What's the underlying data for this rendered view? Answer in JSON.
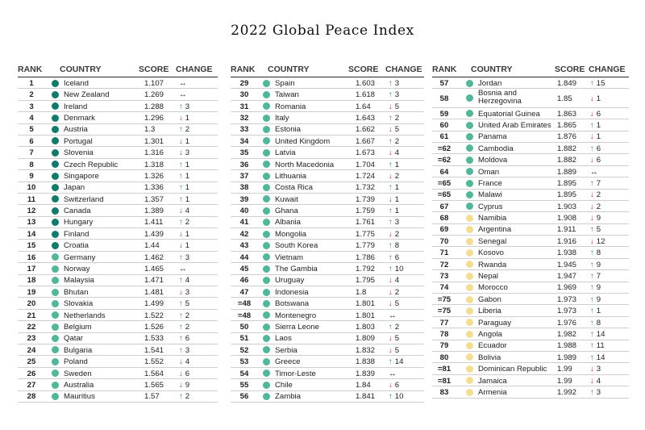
{
  "title": "2022 Global Peace Index",
  "headers": {
    "rank": "RANK",
    "country": "COUNTRY",
    "score": "SCORE",
    "change": "CHANGE"
  },
  "colors": {
    "very_high": "#0f7c6b",
    "high": "#4fb79a",
    "medium": "#f3dd90",
    "up_arrow": "#1e8a6e",
    "down_arrow": "#d22b2b"
  },
  "columns": [
    [
      {
        "rank": "1",
        "country": "Iceland",
        "score": "1.107",
        "dir": "eq",
        "change": "",
        "level": "very_high"
      },
      {
        "rank": "2",
        "country": "New Zealand",
        "score": "1.269",
        "dir": "eq",
        "change": "",
        "level": "very_high"
      },
      {
        "rank": "3",
        "country": "Ireland",
        "score": "1.288",
        "dir": "up",
        "change": "3",
        "level": "very_high"
      },
      {
        "rank": "4",
        "country": "Denmark",
        "score": "1.296",
        "dir": "down",
        "change": "1",
        "level": "very_high"
      },
      {
        "rank": "5",
        "country": "Austria",
        "score": "1.3",
        "dir": "up",
        "change": "2",
        "level": "very_high"
      },
      {
        "rank": "6",
        "country": "Portugal",
        "score": "1.301",
        "dir": "down",
        "change": "1",
        "level": "very_high"
      },
      {
        "rank": "7",
        "country": "Slovenia",
        "score": "1.316",
        "dir": "down",
        "change": "3",
        "level": "very_high"
      },
      {
        "rank": "8",
        "country": "Czech Republic",
        "score": "1.318",
        "dir": "up",
        "change": "1",
        "level": "very_high"
      },
      {
        "rank": "9",
        "country": "Singapore",
        "score": "1.326",
        "dir": "up",
        "change": "1",
        "level": "very_high"
      },
      {
        "rank": "10",
        "country": "Japan",
        "score": "1.336",
        "dir": "up",
        "change": "1",
        "level": "very_high"
      },
      {
        "rank": "11",
        "country": "Switzerland",
        "score": "1.357",
        "dir": "up",
        "change": "1",
        "level": "very_high"
      },
      {
        "rank": "12",
        "country": "Canada",
        "score": "1.389",
        "dir": "down",
        "change": "4",
        "level": "very_high"
      },
      {
        "rank": "13",
        "country": "Hungary",
        "score": "1.411",
        "dir": "up",
        "change": "2",
        "level": "very_high"
      },
      {
        "rank": "14",
        "country": "Finland",
        "score": "1.439",
        "dir": "down",
        "change": "1",
        "level": "very_high"
      },
      {
        "rank": "15",
        "country": "Croatia",
        "score": "1.44",
        "dir": "down",
        "change": "1",
        "level": "very_high"
      },
      {
        "rank": "16",
        "country": "Germany",
        "score": "1.462",
        "dir": "up",
        "change": "3",
        "level": "high"
      },
      {
        "rank": "17",
        "country": "Norway",
        "score": "1.465",
        "dir": "eq",
        "change": "",
        "level": "high"
      },
      {
        "rank": "18",
        "country": "Malaysia",
        "score": "1.471",
        "dir": "up",
        "change": "4",
        "level": "high"
      },
      {
        "rank": "19",
        "country": "Bhutan",
        "score": "1.481",
        "dir": "down",
        "change": "3",
        "level": "high"
      },
      {
        "rank": "20",
        "country": "Slovakia",
        "score": "1.499",
        "dir": "up",
        "change": "5",
        "level": "high"
      },
      {
        "rank": "21",
        "country": "Netherlands",
        "score": "1.522",
        "dir": "up",
        "change": "2",
        "level": "high"
      },
      {
        "rank": "22",
        "country": "Belgium",
        "score": "1.526",
        "dir": "up",
        "change": "2",
        "level": "high"
      },
      {
        "rank": "23",
        "country": "Qatar",
        "score": "1.533",
        "dir": "up",
        "change": "6",
        "level": "high"
      },
      {
        "rank": "24",
        "country": "Bulgaria",
        "score": "1.541",
        "dir": "up",
        "change": "3",
        "level": "high"
      },
      {
        "rank": "25",
        "country": "Poland",
        "score": "1.552",
        "dir": "down",
        "change": "4",
        "level": "high"
      },
      {
        "rank": "26",
        "country": "Sweden",
        "score": "1.564",
        "dir": "down",
        "change": "6",
        "level": "high"
      },
      {
        "rank": "27",
        "country": "Australia",
        "score": "1.565",
        "dir": "down",
        "change": "9",
        "level": "high"
      },
      {
        "rank": "28",
        "country": "Mauritius",
        "score": "1.57",
        "dir": "up",
        "change": "2",
        "level": "high"
      }
    ],
    [
      {
        "rank": "29",
        "country": "Spain",
        "score": "1.603",
        "dir": "up",
        "change": "3",
        "level": "high"
      },
      {
        "rank": "30",
        "country": "Taiwan",
        "score": "1.618",
        "dir": "up",
        "change": "3",
        "level": "high"
      },
      {
        "rank": "31",
        "country": "Romania",
        "score": "1.64",
        "dir": "down",
        "change": "5",
        "level": "high"
      },
      {
        "rank": "32",
        "country": "Italy",
        "score": "1.643",
        "dir": "up",
        "change": "2",
        "level": "high"
      },
      {
        "rank": "33",
        "country": "Estonia",
        "score": "1.662",
        "dir": "down",
        "change": "5",
        "level": "high"
      },
      {
        "rank": "34",
        "country": "United Kingdom",
        "score": "1.667",
        "dir": "up",
        "change": "2",
        "level": "high"
      },
      {
        "rank": "35",
        "country": "Latvia",
        "score": "1.673",
        "dir": "down",
        "change": "4",
        "level": "high"
      },
      {
        "rank": "36",
        "country": "North Macedonia",
        "score": "1.704",
        "dir": "up",
        "change": "1",
        "level": "high"
      },
      {
        "rank": "37",
        "country": "Lithuania",
        "score": "1.724",
        "dir": "down",
        "change": "2",
        "level": "high"
      },
      {
        "rank": "38",
        "country": "Costa Rica",
        "score": "1.732",
        "dir": "up",
        "change": "1",
        "level": "high"
      },
      {
        "rank": "39",
        "country": "Kuwait",
        "score": "1.739",
        "dir": "down",
        "change": "1",
        "level": "high"
      },
      {
        "rank": "40",
        "country": "Ghana",
        "score": "1.759",
        "dir": "up",
        "change": "1",
        "level": "high"
      },
      {
        "rank": "41",
        "country": "Albania",
        "score": "1.761",
        "dir": "up",
        "change": "3",
        "level": "high"
      },
      {
        "rank": "42",
        "country": "Mongolia",
        "score": "1.775",
        "dir": "down",
        "change": "2",
        "level": "high"
      },
      {
        "rank": "43",
        "country": "South Korea",
        "score": "1.779",
        "dir": "up",
        "change": "8",
        "level": "high"
      },
      {
        "rank": "44",
        "country": "Vietnam",
        "score": "1.786",
        "dir": "up",
        "change": "6",
        "level": "high"
      },
      {
        "rank": "45",
        "country": "The Gambia",
        "score": "1.792",
        "dir": "up",
        "change": "10",
        "level": "high"
      },
      {
        "rank": "46",
        "country": "Uruguay",
        "score": "1.795",
        "dir": "down",
        "change": "4",
        "level": "high"
      },
      {
        "rank": "47",
        "country": "Indonesia",
        "score": "1.8",
        "dir": "down",
        "change": "2",
        "level": "high"
      },
      {
        "rank": "=48",
        "country": "Botswana",
        "score": "1.801",
        "dir": "down",
        "change": "5",
        "level": "high"
      },
      {
        "rank": "=48",
        "country": "Montenegro",
        "score": "1.801",
        "dir": "eq",
        "change": "",
        "level": "high"
      },
      {
        "rank": "50",
        "country": "Sierra Leone",
        "score": "1.803",
        "dir": "up",
        "change": "2",
        "level": "high"
      },
      {
        "rank": "51",
        "country": "Laos",
        "score": "1.809",
        "dir": "down",
        "change": "5",
        "level": "high"
      },
      {
        "rank": "52",
        "country": "Serbia",
        "score": "1.832",
        "dir": "down",
        "change": "5",
        "level": "high"
      },
      {
        "rank": "53",
        "country": "Greece",
        "score": "1.838",
        "dir": "up",
        "change": "14",
        "level": "high"
      },
      {
        "rank": "54",
        "country": "Timor-Leste",
        "score": "1.839",
        "dir": "eq",
        "change": "",
        "level": "high"
      },
      {
        "rank": "55",
        "country": "Chile",
        "score": "1.84",
        "dir": "down",
        "change": "6",
        "level": "high"
      },
      {
        "rank": "56",
        "country": "Zambia",
        "score": "1.841",
        "dir": "up",
        "change": "10",
        "level": "high"
      }
    ],
    [
      {
        "rank": "57",
        "country": "Jordan",
        "score": "1.849",
        "dir": "up",
        "change": "15",
        "level": "high"
      },
      {
        "rank": "58",
        "country": "Bosnia and Herzegovina",
        "score": "1.85",
        "dir": "down",
        "change": "1",
        "level": "high",
        "tall": true
      },
      {
        "rank": "59",
        "country": "Equatorial Guinea",
        "score": "1.863",
        "dir": "down",
        "change": "6",
        "level": "high"
      },
      {
        "rank": "60",
        "country": "United Arab Emirates",
        "score": "1.865",
        "dir": "up",
        "change": "1",
        "level": "high"
      },
      {
        "rank": "61",
        "country": "Panama",
        "score": "1.876",
        "dir": "down",
        "change": "1",
        "level": "high"
      },
      {
        "rank": "=62",
        "country": "Cambodia",
        "score": "1.882",
        "dir": "up",
        "change": "6",
        "level": "high"
      },
      {
        "rank": "=62",
        "country": "Moldova",
        "score": "1.882",
        "dir": "down",
        "change": "6",
        "level": "high"
      },
      {
        "rank": "64",
        "country": "Oman",
        "score": "1.889",
        "dir": "eq",
        "change": "",
        "level": "high"
      },
      {
        "rank": "=65",
        "country": "France",
        "score": "1.895",
        "dir": "up",
        "change": "7",
        "level": "high"
      },
      {
        "rank": "=65",
        "country": "Malawi",
        "score": "1.895",
        "dir": "down",
        "change": "2",
        "level": "high"
      },
      {
        "rank": "67",
        "country": "Cyprus",
        "score": "1.903",
        "dir": "down",
        "change": "2",
        "level": "high"
      },
      {
        "rank": "68",
        "country": "Namibia",
        "score": "1.908",
        "dir": "down",
        "change": "9",
        "level": "medium"
      },
      {
        "rank": "69",
        "country": "Argentina",
        "score": "1.911",
        "dir": "up",
        "change": "5",
        "level": "medium"
      },
      {
        "rank": "70",
        "country": "Senegal",
        "score": "1.916",
        "dir": "down",
        "change": "12",
        "level": "medium"
      },
      {
        "rank": "71",
        "country": "Kosovo",
        "score": "1.938",
        "dir": "up",
        "change": "8",
        "level": "medium"
      },
      {
        "rank": "72",
        "country": "Rwanda",
        "score": "1.945",
        "dir": "up",
        "change": "9",
        "level": "medium"
      },
      {
        "rank": "73",
        "country": "Nepal",
        "score": "1.947",
        "dir": "up",
        "change": "7",
        "level": "medium"
      },
      {
        "rank": "74",
        "country": "Morocco",
        "score": "1.969",
        "dir": "up",
        "change": "9",
        "level": "medium"
      },
      {
        "rank": "=75",
        "country": "Gabon",
        "score": "1.973",
        "dir": "up",
        "change": "9",
        "level": "medium"
      },
      {
        "rank": "=75",
        "country": "Liberia",
        "score": "1.973",
        "dir": "up",
        "change": "1",
        "level": "medium"
      },
      {
        "rank": "77",
        "country": "Paraguay",
        "score": "1.976",
        "dir": "up",
        "change": "8",
        "level": "medium"
      },
      {
        "rank": "78",
        "country": "Angola",
        "score": "1.982",
        "dir": "up",
        "change": "14",
        "level": "medium"
      },
      {
        "rank": "79",
        "country": "Ecuador",
        "score": "1.988",
        "dir": "up",
        "change": "11",
        "level": "medium"
      },
      {
        "rank": "80",
        "country": "Bolivia",
        "score": "1.989",
        "dir": "up",
        "change": "14",
        "level": "medium"
      },
      {
        "rank": "=81",
        "country": "Dominican Republic",
        "score": "1.99",
        "dir": "down",
        "change": "3",
        "level": "medium"
      },
      {
        "rank": "=81",
        "country": "Jamaica",
        "score": "1.99",
        "dir": "down",
        "change": "4",
        "level": "medium"
      },
      {
        "rank": "83",
        "country": "Armenia",
        "score": "1.992",
        "dir": "up",
        "change": "3",
        "level": "medium"
      }
    ]
  ]
}
